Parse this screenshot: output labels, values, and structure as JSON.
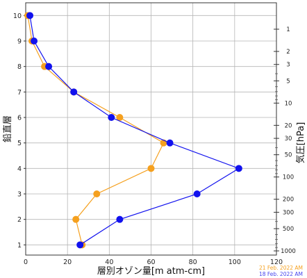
{
  "chart_data": {
    "type": "line",
    "xlabel": "層別オゾン量[m atm-cm]",
    "ylabel": "鉛直層",
    "y2label": "気圧[hPa]",
    "xlim": [
      0,
      120
    ],
    "ylim": [
      0.6,
      10.5
    ],
    "x_ticks": [
      "0",
      "20",
      "40",
      "60",
      "80",
      "100",
      "120"
    ],
    "y_ticks": [
      "1",
      "2",
      "3",
      "4",
      "5",
      "6",
      "7",
      "8",
      "9",
      "10"
    ],
    "pressure_ticks": [
      "1",
      "2",
      "3",
      "5",
      "10",
      "20",
      "30",
      "50",
      "100",
      "200",
      "300",
      "500",
      "1000"
    ],
    "grid": true,
    "series": [
      {
        "name": "21 Feb. 2022 AM",
        "color": "#f5a01e",
        "x": [
          27,
          24,
          34,
          60,
          66,
          45,
          23,
          9,
          3,
          1
        ],
        "y": [
          1,
          2,
          3,
          4,
          5,
          6,
          7,
          8,
          9,
          10
        ]
      },
      {
        "name": "18 Feb. 2022 AM",
        "color": "#1111ee",
        "x": [
          26,
          45,
          82,
          102,
          69,
          41,
          23,
          11,
          4,
          2
        ],
        "y": [
          1,
          2,
          3,
          4,
          5,
          6,
          7,
          8,
          9,
          10
        ]
      }
    ]
  },
  "legend": {
    "line1": "21 Feb. 2022 AM",
    "line2": "18 Feb. 2022 AM",
    "color1": "#f5a01e",
    "color2": "#4444ee"
  }
}
